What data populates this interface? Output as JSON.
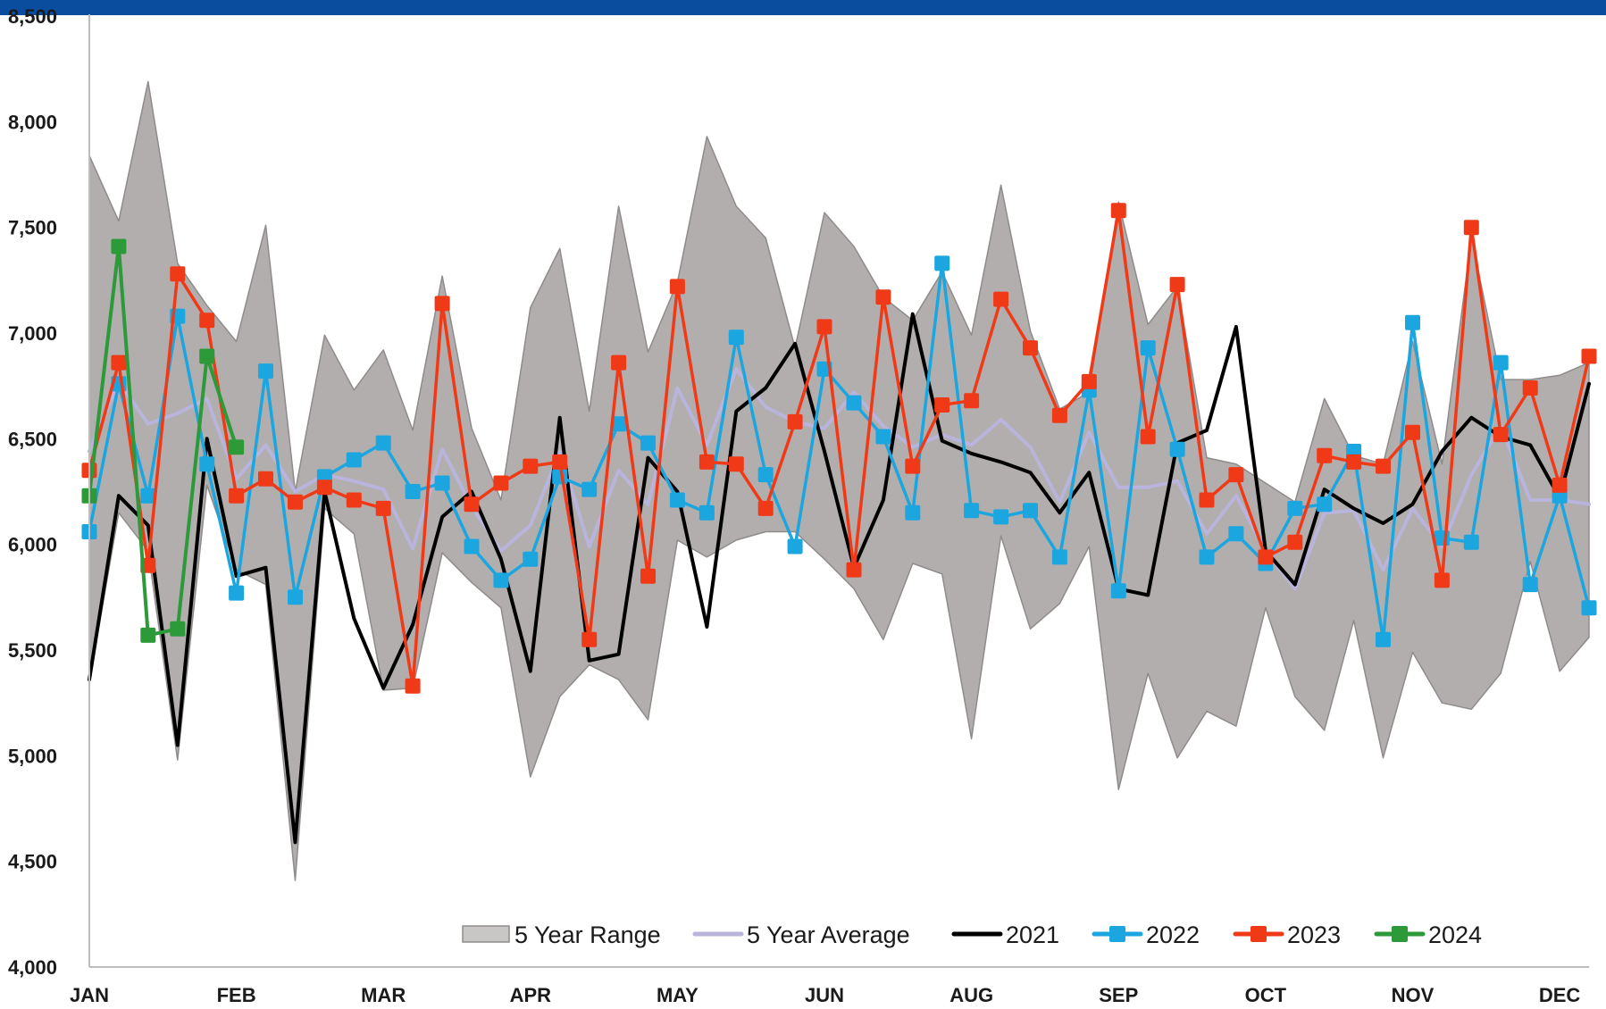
{
  "chart_data": {
    "type": "line",
    "title": "",
    "xlabel": "",
    "ylabel": "",
    "ylim": [
      4000,
      8500
    ],
    "y_ticks": [
      "4,000",
      "4,500",
      "5,000",
      "5,500",
      "6,000",
      "6,500",
      "7,000",
      "7,500",
      "8,000",
      "8,500"
    ],
    "y_tick_values": [
      4000,
      4500,
      5000,
      5500,
      6000,
      6500,
      7000,
      7500,
      8000,
      8500
    ],
    "x_ticks": [
      "JAN",
      "FEB",
      "MAR",
      "APR",
      "MAY",
      "JUN",
      "AUG",
      "SEP",
      "OCT",
      "NOV",
      "DEC"
    ],
    "x_tick_weeks": [
      1,
      6,
      11,
      16,
      21,
      26,
      31,
      36,
      41,
      46,
      51
    ],
    "weeks_shown": 52,
    "grid": false,
    "legend_position": "bottom-right",
    "colors": {
      "range_fill": "#b2aeae",
      "average": "#b9b4dc",
      "2021": "#000000",
      "2022": "#1ba6e0",
      "2023": "#f03a17",
      "2024": "#2d9a3a",
      "header_bar": "#0a4c9e"
    },
    "range_series": {
      "name": "5 Year Range",
      "upper": [
        7840,
        7530,
        8190,
        7330,
        7130,
        6960,
        7510,
        6250,
        6990,
        6730,
        6920,
        6540,
        7270,
        6550,
        6210,
        7120,
        7400,
        6630,
        7600,
        6910,
        7240,
        7930,
        7600,
        7450,
        6930,
        7570,
        7410,
        7170,
        7060,
        7290,
        6990,
        7700,
        7010,
        6640,
        6720,
        7620,
        7040,
        7220,
        6410,
        6380,
        6290,
        6200,
        6690,
        6420,
        6380,
        6960,
        6380,
        7450,
        6780,
        6780,
        6800,
        6860
      ],
      "lower": [
        5350,
        6150,
        5970,
        4980,
        6280,
        5880,
        5810,
        4410,
        6170,
        6050,
        5310,
        5320,
        5960,
        5820,
        5700,
        4900,
        5280,
        5430,
        5360,
        5170,
        6020,
        5940,
        6020,
        6060,
        6060,
        5930,
        5790,
        5550,
        5910,
        5860,
        5080,
        6040,
        5600,
        5720,
        5990,
        4840,
        5390,
        4990,
        5210,
        5140,
        5700,
        5280,
        5120,
        5640,
        4990,
        5490,
        5250,
        5220,
        5390,
        5920,
        5400,
        5560
      ]
    },
    "series": [
      {
        "name": "5 Year Average",
        "marker": "none",
        "values": [
          6440,
          6770,
          6570,
          6620,
          6690,
          6310,
          6470,
          6250,
          6330,
          6300,
          6260,
          5980,
          6450,
          6180,
          5970,
          6090,
          6440,
          5990,
          6350,
          6190,
          6740,
          6470,
          6830,
          6650,
          6580,
          6550,
          6720,
          6560,
          6460,
          6520,
          6470,
          6590,
          6460,
          6200,
          6530,
          6270,
          6270,
          6300,
          6050,
          6230,
          5970,
          5790,
          6150,
          6160,
          5880,
          6170,
          5990,
          6330,
          6560,
          6210,
          6210,
          6190
        ]
      },
      {
        "name": "2021",
        "marker": "none",
        "values": [
          5360,
          6230,
          6090,
          5050,
          6500,
          5850,
          5890,
          4590,
          6250,
          5650,
          5320,
          5620,
          6130,
          6250,
          5930,
          5400,
          6600,
          5450,
          5480,
          6410,
          6250,
          5610,
          6630,
          6740,
          6950,
          6440,
          5890,
          6210,
          7090,
          6490,
          6430,
          6390,
          6340,
          6150,
          6340,
          5790,
          5760,
          6480,
          6540,
          7030,
          5970,
          5810,
          6260,
          6170,
          6100,
          6190,
          6440,
          6600,
          6510,
          6470,
          6220,
          6760
        ]
      },
      {
        "name": "2022",
        "marker": "square",
        "values": [
          6060,
          6760,
          6230,
          7080,
          6380,
          5770,
          6820,
          5750,
          6320,
          6400,
          6480,
          6250,
          6290,
          5990,
          5830,
          5930,
          6320,
          6260,
          6570,
          6480,
          6210,
          6150,
          6980,
          6330,
          5990,
          6830,
          6670,
          6510,
          6150,
          7330,
          6160,
          6130,
          6160,
          5940,
          6730,
          5780,
          6930,
          6450,
          5940,
          6050,
          5910,
          6170,
          6190,
          6440,
          5550,
          7050,
          6030,
          6010,
          6860,
          5810,
          6230,
          5700
        ]
      },
      {
        "name": "2023",
        "marker": "square",
        "values": [
          6350,
          6860,
          5900,
          7280,
          7060,
          6230,
          6310,
          6200,
          6270,
          6210,
          6170,
          5330,
          7140,
          6190,
          6290,
          6370,
          6390,
          5550,
          6860,
          5850,
          7220,
          6390,
          6380,
          6170,
          6580,
          7030,
          5880,
          7170,
          6370,
          6660,
          6680,
          7160,
          6930,
          6610,
          6770,
          7580,
          6510,
          7230,
          6210,
          6330,
          5940,
          6010,
          6420,
          6390,
          6370,
          6530,
          5830,
          7500,
          6520,
          6740,
          6280,
          6890
        ]
      },
      {
        "name": "2024",
        "marker": "square",
        "values": [
          6230,
          7410,
          5570,
          5600,
          6890,
          6460
        ]
      }
    ],
    "legend": [
      "5 Year Range",
      "5 Year Average",
      "2021",
      "2022",
      "2023",
      "2024"
    ]
  }
}
